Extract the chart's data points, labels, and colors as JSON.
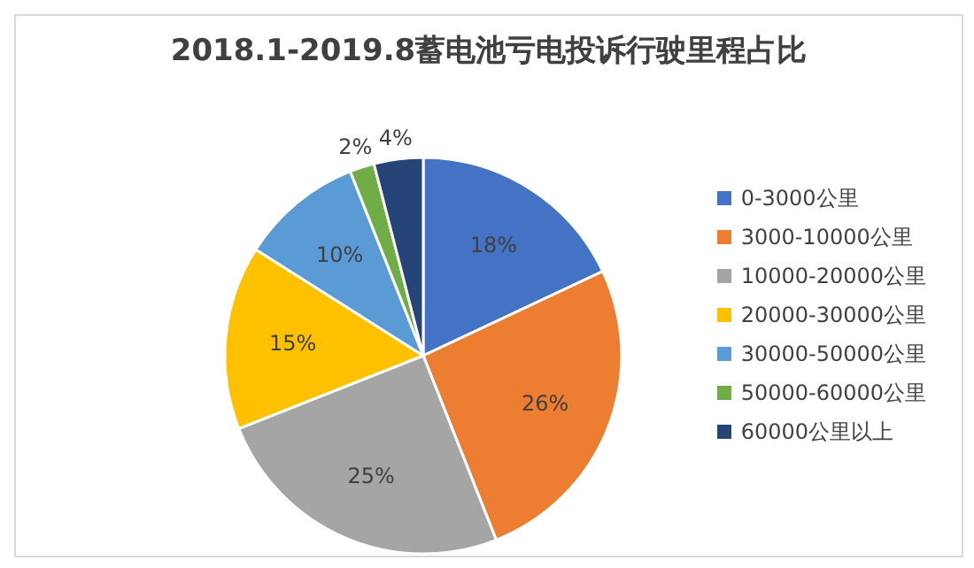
{
  "chart_data": {
    "type": "pie",
    "title": "2018.1-2019.8蓄电池亏电投诉行驶里程占比",
    "categories": [
      "0-3000公里",
      "3000-10000公里",
      "10000-20000公里",
      "20000-30000公里",
      "30000-50000公里",
      "50000-60000公里",
      "60000公里以上"
    ],
    "values": [
      18,
      26,
      25,
      15,
      10,
      2,
      4
    ],
    "colors": [
      "#4472c4",
      "#ed7d31",
      "#a5a5a5",
      "#ffc000",
      "#5b9bd5",
      "#70ad47",
      "#264478"
    ],
    "value_labels": [
      "18%",
      "26%",
      "25%",
      "15%",
      "10%",
      "2%",
      "4%"
    ],
    "legend": "right"
  }
}
